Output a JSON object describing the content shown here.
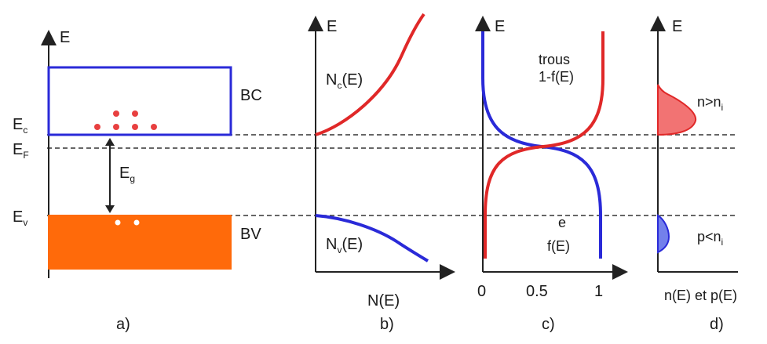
{
  "colors": {
    "blue": "#2a2ad8",
    "red": "#e02828",
    "orange": "#ff6a0a",
    "red_dot": "#e84040",
    "red_fill": "#f05a5a",
    "blue_fill": "#5a6ae8",
    "axis": "#222222",
    "dashed": "#333333"
  },
  "panels": {
    "a": {
      "label": "a)",
      "axis_label": "E",
      "band_conduction": "BC",
      "band_valence": "BV",
      "level_c": {
        "base": "E",
        "sub": "c"
      },
      "level_f": {
        "base": "E",
        "sub": "F"
      },
      "level_v": {
        "base": "E",
        "sub": "v"
      },
      "gap": {
        "base": "E",
        "sub": "g"
      }
    },
    "b": {
      "label": "b)",
      "axis_label": "E",
      "x_label": "N(E)",
      "curve_c": {
        "base": "N",
        "sub": "c",
        "rest": "(E)"
      },
      "curve_v": {
        "base": "N",
        "sub": "v",
        "rest": "(E)"
      }
    },
    "c": {
      "label": "c)",
      "axis_label": "E",
      "holes_line1": "trous",
      "holes_line2": "1-f(E)",
      "electrons_line1": "e",
      "electrons_line2": "f(E)",
      "tick_0": "0",
      "tick_05": "0.5",
      "tick_1": "1"
    },
    "d": {
      "label": "d)",
      "axis_label": "E",
      "x_label": "n(E) et p(E)",
      "n_rel": {
        "base": "n>n",
        "sub": "i"
      },
      "p_rel": {
        "base": "p<n",
        "sub": "i"
      }
    }
  }
}
